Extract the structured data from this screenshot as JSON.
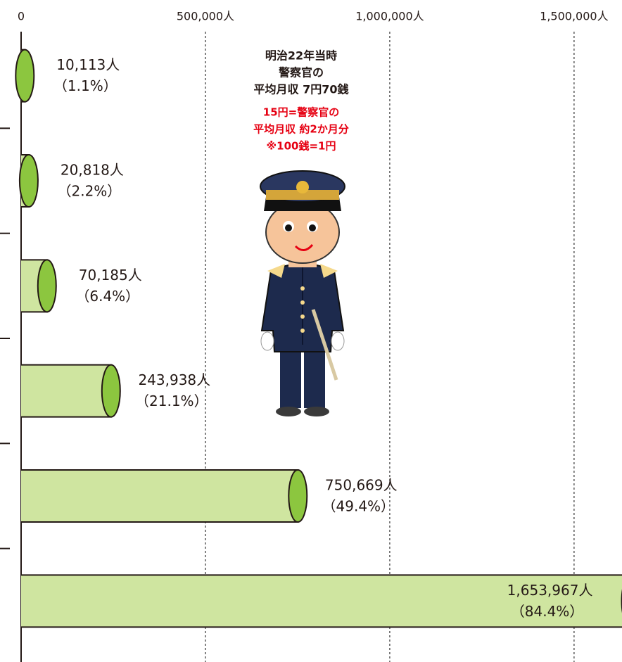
{
  "chart_data": {
    "type": "bar",
    "orientation": "horizontal",
    "categories": [
      null,
      null,
      null,
      null,
      null,
      null
    ],
    "values": [
      10113,
      20818,
      70185,
      243938,
      750669,
      1653967
    ],
    "value_labels": [
      "10,113人",
      "20,818人",
      "70,185人",
      "243,938人",
      "750,669人",
      "1,653,967人"
    ],
    "percent": [
      1.1,
      2.2,
      6.4,
      21.1,
      49.4,
      84.4
    ],
    "percent_labels": [
      "（1.1%）",
      "（2.2%）",
      "（6.4%）",
      "（21.1%）",
      "（49.4%）",
      "（84.4%）"
    ],
    "color": "#cfe5a0",
    "cap_color": "#8cc63f",
    "xlim": [
      0,
      1630000
    ],
    "xticks": [
      0,
      {
        "value": 500000,
        "label": "500,000人"
      },
      {
        "value": 1000000,
        "label": "1,000,000人"
      },
      {
        "value": 1500000,
        "label": "1,500,000人"
      }
    ],
    "grid": true,
    "annotation": [
      "明治22年当時",
      "警察官の",
      "平均月収 7円70銭"
    ],
    "annotation_note": [
      "15円=警察官の",
      "平均月収 約2か月分",
      "※100銭=1円"
    ]
  }
}
